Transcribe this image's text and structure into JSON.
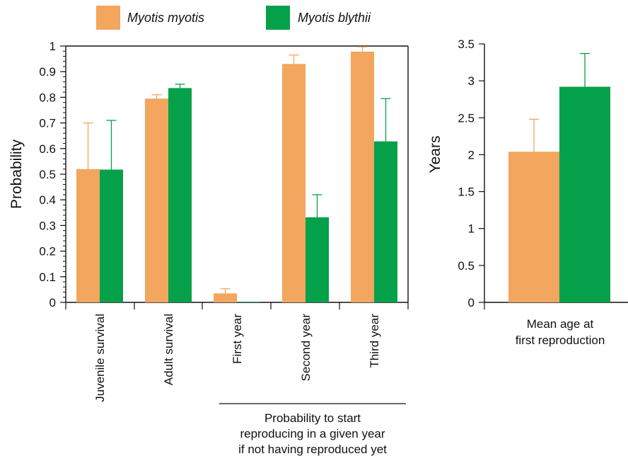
{
  "colors": {
    "myotis": "#F2A65E",
    "blythii": "#05A14A",
    "axis": "#111111"
  },
  "legend": [
    {
      "label": "Myotis myotis",
      "color": "#F2A65E"
    },
    {
      "label": "Myotis blythii",
      "color": "#05A14A"
    }
  ],
  "chart_data": [
    {
      "type": "bar",
      "ylabel": "Probability",
      "ylim": [
        0,
        1
      ],
      "yticks": [
        "0",
        "0.1",
        "0.2",
        "0.3",
        "0.4",
        "0.5",
        "0.6",
        "0.7",
        "0.8",
        "0.9",
        "1"
      ],
      "categories": [
        "Juvenile survival",
        "Adult survival",
        "First year",
        "Second year",
        "Third year"
      ],
      "group_label": [
        "Probability to start",
        "reproducing in a given year",
        "if not having reproduced yet"
      ],
      "series": [
        {
          "name": "Myotis myotis",
          "values": [
            0.52,
            0.795,
            0.035,
            0.93,
            0.978
          ],
          "err_upper": [
            0.7,
            0.81,
            0.053,
            0.965,
            0.997
          ]
        },
        {
          "name": "Myotis blythii",
          "values": [
            0.518,
            0.836,
            0.002,
            0.332,
            0.628
          ],
          "err_upper": [
            0.71,
            0.851,
            0.002,
            0.42,
            0.795
          ]
        }
      ]
    },
    {
      "type": "bar",
      "ylabel": "Years",
      "ylim": [
        0,
        3.5
      ],
      "yticks": [
        "0",
        "0.5",
        "1",
        "1.5",
        "2",
        "2.5",
        "3",
        "3.5"
      ],
      "categories": [
        "Mean age at first reproduction"
      ],
      "category_lines": [
        "Mean age at",
        "first reproduction"
      ],
      "series": [
        {
          "name": "Myotis myotis",
          "values": [
            2.04
          ],
          "err_upper": [
            2.48
          ]
        },
        {
          "name": "Myotis blythii",
          "values": [
            2.92
          ],
          "err_upper": [
            3.37
          ]
        }
      ]
    }
  ]
}
